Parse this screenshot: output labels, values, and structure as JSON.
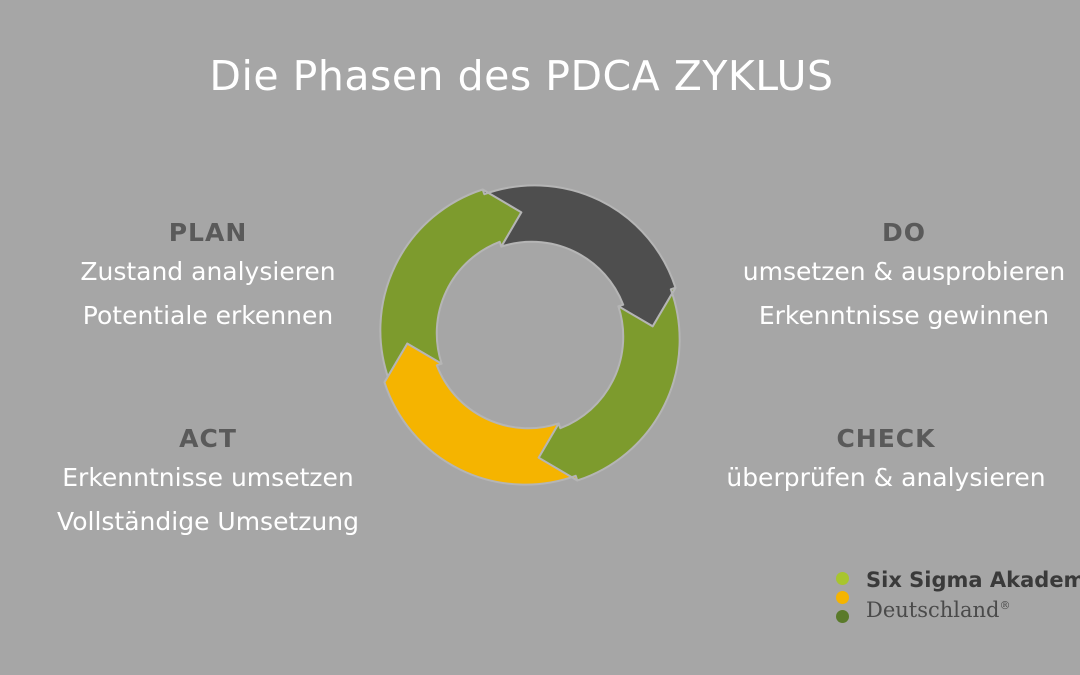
{
  "title": "Die Phasen des PDCA ZYKLUS",
  "phases": {
    "plan": {
      "head": "PLAN",
      "lines": [
        "Zustand analysieren",
        "Potentiale erkennen"
      ]
    },
    "do": {
      "head": "DO",
      "lines": [
        "umsetzen & ausprobieren",
        "Erkenntnisse gewinnen"
      ]
    },
    "act": {
      "head": "ACT",
      "lines": [
        "Erkenntnisse umsetzen",
        "Vollständige Umsetzung"
      ]
    },
    "check": {
      "head": "CHECK",
      "lines": [
        "überprüfen & analysieren"
      ]
    }
  },
  "colors": {
    "background": "#a6a6a6",
    "green": "#7d9b2d",
    "dark": "#4e4e4e",
    "yellow": "#f5b400",
    "logo_dot_1": "#a8c52e",
    "logo_dot_2": "#f5b400",
    "logo_dot_3": "#5a7a2a"
  },
  "logo": {
    "line1": "Six Sigma Akadem",
    "line2": "Deutschland",
    "mark": "®"
  }
}
